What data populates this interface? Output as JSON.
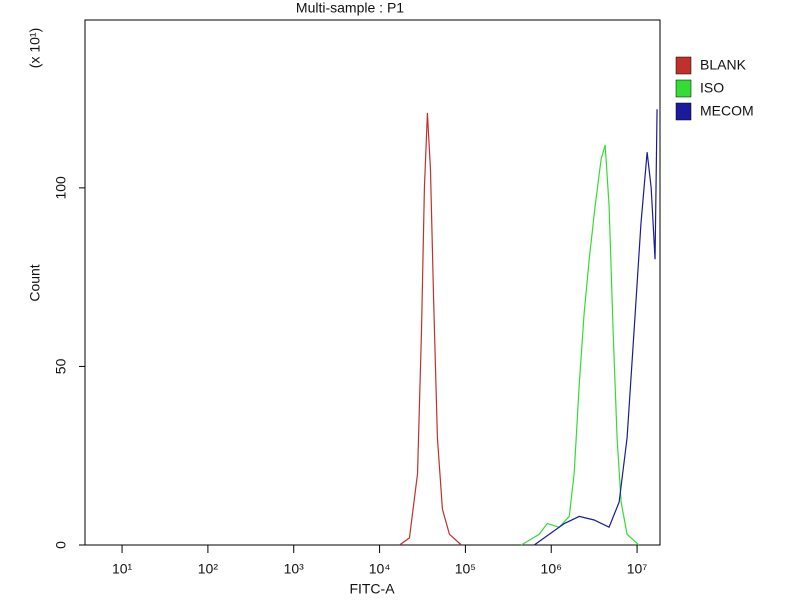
{
  "chart_data": {
    "type": "line",
    "title": "Multi-sample : P1",
    "x_label": "FITC-A",
    "y_label": "Count",
    "y_multiplier": "(x 10¹)",
    "xscale": "log",
    "xlim": [
      3.7,
      18500000
    ],
    "ylim": [
      0,
      147
    ],
    "xticks": [
      {
        "value": 10,
        "label": "10¹"
      },
      {
        "value": 100,
        "label": "10²"
      },
      {
        "value": 1000,
        "label": "10³"
      },
      {
        "value": 10000,
        "label": "10⁴"
      },
      {
        "value": 100000,
        "label": "10⁵"
      },
      {
        "value": 1000000,
        "label": "10⁶"
      },
      {
        "value": 10000000,
        "label": "10⁷"
      }
    ],
    "yticks": [
      0,
      50,
      100
    ],
    "legend": "top-right",
    "series": [
      {
        "name": "BLANK",
        "color": "#c0302c",
        "x": [
          17100,
          22300,
          27700,
          30800,
          33300,
          36100,
          39200,
          42500,
          47200,
          54000,
          65200,
          89800
        ],
        "values": [
          0,
          2,
          20,
          60,
          100,
          121,
          105,
          70,
          30,
          10,
          3,
          0
        ]
      },
      {
        "name": "ISO",
        "color": "#33dd33",
        "x": [
          448000,
          724000,
          898000,
          1240000,
          1620000,
          1850000,
          2120000,
          2420000,
          2770000,
          3250000,
          3810000,
          4250000,
          4720000,
          5260000,
          5850000,
          6520000,
          7650000,
          10500000
        ],
        "values": [
          0,
          3,
          6,
          5,
          8,
          20,
          45,
          65,
          80,
          95,
          108,
          112,
          95,
          60,
          30,
          12,
          3,
          0
        ]
      },
      {
        "name": "MECOM",
        "color": "#1a1a9a",
        "x": [
          634000,
          949000,
          1420000,
          2120000,
          3160000,
          4720000,
          6180000,
          7650000,
          9230000,
          11100000,
          13100000,
          14600000,
          16200000,
          17100000
        ],
        "values": [
          0,
          3,
          6,
          8,
          7,
          5,
          12,
          30,
          60,
          90,
          110,
          100,
          80,
          122
        ]
      }
    ]
  }
}
